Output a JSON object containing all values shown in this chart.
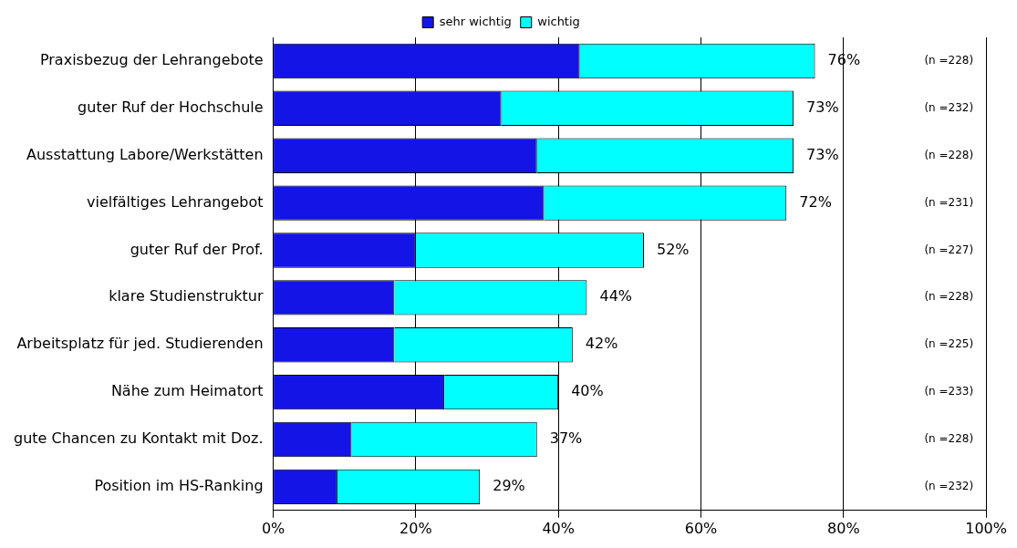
{
  "chart_data": {
    "type": "bar",
    "orientation": "horizontal",
    "stacked": true,
    "categories": [
      "Praxisbezug der Lehrangebote",
      "guter Ruf der Hochschule",
      "Ausstattung Labore/Werkstätten",
      "vielfältiges Lehrangebot",
      "guter Ruf der Prof.",
      "klare Studienstruktur",
      "Arbeitsplatz für jed. Studierenden",
      "Nähe zum Heimatort",
      "gute Chancen zu Kontakt mit Doz.",
      "Position im HS-Ranking"
    ],
    "series": [
      {
        "name": "sehr wichtig",
        "color": "#1414e6",
        "values": [
          43,
          32,
          37,
          38,
          20,
          17,
          17,
          24,
          11,
          9
        ]
      },
      {
        "name": "wichtig",
        "color": "#00ffff",
        "values": [
          33,
          41,
          36,
          34,
          32,
          27,
          25,
          16,
          26,
          20
        ]
      }
    ],
    "totals": [
      "76%",
      "73%",
      "73%",
      "72%",
      "52%",
      "44%",
      "42%",
      "40%",
      "37%",
      "29%"
    ],
    "annotations": [
      "(n =228)",
      "(n =232)",
      "(n =228)",
      "(n =231)",
      "(n =227)",
      "(n =228)",
      "(n =225)",
      "(n =233)",
      "(n =228)",
      "(n =232)"
    ],
    "xlim": [
      0,
      100
    ],
    "xticks": [
      {
        "value": 0,
        "label": "0%"
      },
      {
        "value": 20,
        "label": "20%"
      },
      {
        "value": 40,
        "label": "40%"
      },
      {
        "value": 60,
        "label": "60%"
      },
      {
        "value": 80,
        "label": "80%"
      },
      {
        "value": 100,
        "label": "100%"
      }
    ],
    "grid": "x",
    "legend": "top"
  }
}
